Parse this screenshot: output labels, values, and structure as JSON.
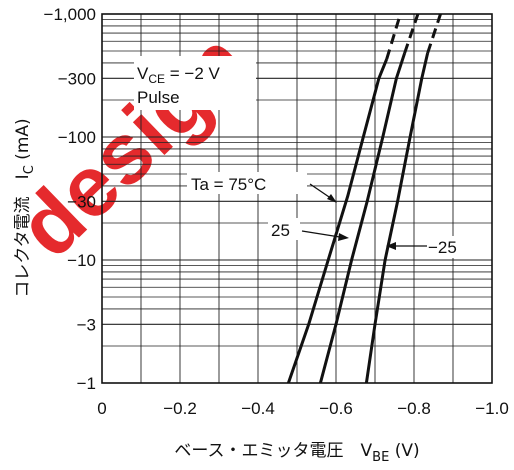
{
  "chart_data": {
    "type": "line",
    "title": "",
    "xlabel": "ベース・エミッタ電圧　V",
    "xlabel_sub": "BE",
    "xlabel_unit": " (V)",
    "ylabel": "コレクタ電流　I",
    "ylabel_sub": "C",
    "ylabel_unit": " (mA)",
    "x_scale": "linear",
    "y_scale": "log",
    "xlim": [
      0,
      -1.0
    ],
    "ylim": [
      -1,
      -1000
    ],
    "x_ticks": [
      0,
      -0.2,
      -0.4,
      -0.6,
      -0.8,
      -1.0
    ],
    "x_tick_labels": [
      "0",
      "−0.2",
      "−0.4",
      "−0.6",
      "−0.8",
      "−1.0"
    ],
    "y_ticks": [
      -1,
      -3,
      -10,
      -30,
      -100,
      -300,
      -1000
    ],
    "y_tick_labels": [
      "−1",
      "−3",
      "−10",
      "−30",
      "−100",
      "−300",
      "−1,000"
    ],
    "grid": true,
    "conditions": {
      "vce_prefix": "V",
      "vce_sub": "CE",
      "vce_value": " = −2 V",
      "mode": "Pulse"
    },
    "series": [
      {
        "name": "Ta = 75°C",
        "points": [
          [
            -0.478,
            -1
          ],
          [
            -0.53,
            -3
          ],
          [
            -0.58,
            -10
          ],
          [
            -0.63,
            -33
          ],
          [
            -0.67,
            -100
          ],
          [
            -0.71,
            -300
          ],
          [
            -0.73,
            -430
          ]
        ],
        "dashed_points": [
          [
            -0.73,
            -430
          ],
          [
            -0.765,
            -1000
          ]
        ]
      },
      {
        "name": "25",
        "points": [
          [
            -0.56,
            -1
          ],
          [
            -0.6,
            -3
          ],
          [
            -0.64,
            -10
          ],
          [
            -0.68,
            -30
          ],
          [
            -0.72,
            -100
          ],
          [
            -0.755,
            -300
          ],
          [
            -0.776,
            -480
          ]
        ],
        "dashed_points": [
          [
            -0.776,
            -480
          ],
          [
            -0.81,
            -1000
          ]
        ]
      },
      {
        "name": "−25",
        "points": [
          [
            -0.678,
            -1
          ],
          [
            -0.7,
            -3
          ],
          [
            -0.726,
            -10
          ],
          [
            -0.758,
            -30
          ],
          [
            -0.79,
            -100
          ],
          [
            -0.82,
            -300
          ],
          [
            -0.835,
            -480
          ]
        ],
        "dashed_points": [
          [
            -0.835,
            -480
          ],
          [
            -0.868,
            -1000
          ]
        ]
      }
    ]
  },
  "watermark_text": "design"
}
